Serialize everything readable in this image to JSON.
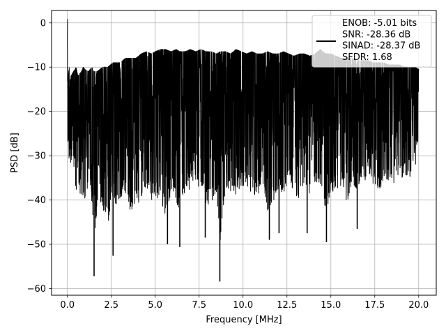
{
  "chart_data": {
    "type": "line",
    "title": "",
    "xlabel": "Frequency [MHz]",
    "ylabel": "PSD [dB]",
    "xlim": [
      -0.9,
      21.0
    ],
    "ylim": [
      -61.5,
      2.8
    ],
    "xticks": [
      0.0,
      2.5,
      5.0,
      7.5,
      10.0,
      12.5,
      15.0,
      17.5,
      20.0
    ],
    "xtick_labels": [
      "0.0",
      "2.5",
      "5.0",
      "7.5",
      "10.0",
      "12.5",
      "15.0",
      "17.5",
      "20.0"
    ],
    "yticks": [
      0,
      -10,
      -20,
      -30,
      -40,
      -50,
      -60
    ],
    "ytick_labels": [
      "0",
      "−10",
      "−20",
      "−30",
      "−40",
      "−50",
      "−60"
    ],
    "grid": true,
    "legend_placement": "upper-right",
    "series": [
      {
        "name": "ENOB: -5.01 bits\nSNR: -28.36 dB\nSINAD: -28.37 dB\nSFDR: 1.68",
        "color": "#000000",
        "x": [
          0.0,
          0.01,
          0.02,
          0.05,
          0.1,
          0.2,
          0.35,
          0.5,
          0.6,
          0.8,
          0.9,
          1.0,
          1.2,
          1.4,
          1.5,
          1.7,
          2.0,
          2.3,
          2.6,
          2.8,
          3.0,
          3.3,
          3.6,
          3.9,
          4.2,
          4.5,
          4.8,
          5.0,
          5.3,
          5.6,
          5.9,
          6.2,
          6.4,
          6.7,
          7.0,
          7.3,
          7.6,
          7.9,
          8.2,
          8.5,
          8.7,
          9.0,
          9.3,
          9.6,
          9.9,
          10.2,
          10.5,
          10.8,
          11.1,
          11.4,
          11.7,
          12.0,
          12.3,
          12.6,
          12.9,
          13.2,
          13.5,
          13.8,
          14.1,
          14.4,
          14.7,
          15.0,
          15.3,
          15.6,
          15.9,
          16.2,
          16.5,
          16.8,
          17.1,
          17.4,
          17.7,
          18.0,
          18.3,
          18.6,
          18.9,
          19.2,
          19.5,
          19.8,
          20.0
        ],
        "y_upper": [
          -3,
          0.8,
          -10,
          -12,
          -10,
          -12,
          -11,
          -10,
          -12,
          -11,
          -10,
          -10.5,
          -11,
          -10,
          -11,
          -11,
          -10,
          -10,
          -9,
          -9,
          -9,
          -8,
          -8,
          -8,
          -7,
          -6.5,
          -7,
          -6.5,
          -6,
          -6,
          -6.5,
          -6,
          -6.5,
          -6.5,
          -6,
          -6.5,
          -6,
          -6.5,
          -6.5,
          -7,
          -6.5,
          -6.5,
          -7,
          -6,
          -6.5,
          -7,
          -6.5,
          -7,
          -7,
          -6.5,
          -7,
          -7,
          -6.5,
          -7,
          -7.5,
          -7,
          -7,
          -7.5,
          -7,
          -6,
          -7,
          -7,
          -7.5,
          -8,
          -8,
          -8,
          -8.5,
          -8.5,
          -8.5,
          -9,
          -9,
          -9,
          -9.5,
          -9.5,
          -9.5,
          -10,
          -10,
          -10,
          -10.5
        ],
        "y_lower": [
          -5,
          -18,
          -39,
          -37,
          -36,
          -35,
          -37,
          -45,
          -40,
          -48,
          -46,
          -47,
          -40,
          -46,
          -57,
          -47,
          -48,
          -52,
          -44,
          -48,
          -46,
          -44,
          -50,
          -46,
          -47,
          -42,
          -46,
          -45,
          -47,
          -50,
          -44,
          -46,
          -50.5,
          -44,
          -43,
          -42,
          -43,
          -48,
          -47,
          -44,
          -58.5,
          -43,
          -44,
          -45,
          -42,
          -43,
          -44,
          -45,
          -42,
          -49,
          -47,
          -43,
          -45,
          -41,
          -44,
          -46,
          -43,
          -45,
          -41,
          -42,
          -49.5,
          -45,
          -43,
          -42,
          -46.5,
          -42,
          -43,
          -41,
          -40,
          -42,
          -44,
          -41,
          -40,
          -41,
          -38,
          -42,
          -40,
          -36,
          -35
        ],
        "deep_spikes": [
          [
            1.52,
            -57.2
          ],
          [
            2.6,
            -52.6
          ],
          [
            5.7,
            -50.0
          ],
          [
            6.4,
            -50.6
          ],
          [
            7.85,
            -48.5
          ],
          [
            8.68,
            -58.4
          ],
          [
            11.5,
            -49.0
          ],
          [
            12.05,
            -47.5
          ],
          [
            13.65,
            -47.5
          ],
          [
            14.75,
            -49.5
          ],
          [
            16.5,
            -46.5
          ]
        ]
      }
    ]
  }
}
